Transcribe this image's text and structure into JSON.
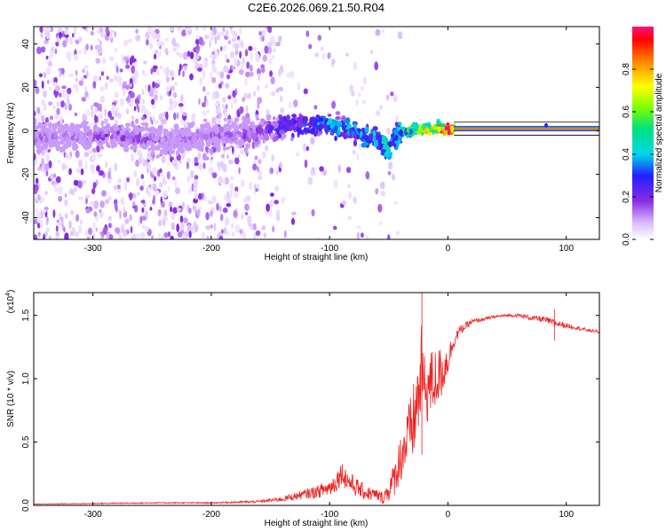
{
  "page_title": "C2E6.2026.069.21.50.R04",
  "chart_data": [
    {
      "type": "heatmap",
      "title": "C2E6.2026.069.21.50.R04",
      "xlabel": "Height of straight line (km)",
      "ylabel": "Frequency (Hz)",
      "xlim": [
        -350,
        128
      ],
      "ylim": [
        -50,
        48
      ],
      "x_ticks": [
        -300,
        -200,
        -100,
        0,
        100
      ],
      "x_tick_labels": [
        "-300",
        "-200",
        "-100",
        "0",
        "100"
      ],
      "y_ticks": [
        -40,
        -20,
        0,
        20,
        40
      ],
      "y_tick_labels": [
        "-40",
        "-20",
        "0",
        "20",
        "40"
      ],
      "colorbar": {
        "label": "Normalized spectral amplitude",
        "range": [
          0,
          1
        ],
        "ticks": [
          0.0,
          0.2,
          0.4,
          0.6,
          0.8
        ],
        "tick_labels": [
          "0.0",
          "0.2",
          "0.4",
          "0.6",
          "0.8"
        ]
      },
      "signal_ridge": {
        "x": [
          -320,
          -280,
          -240,
          -200,
          -160,
          -140,
          -120,
          -100,
          -80,
          -60,
          -50,
          -45,
          -40,
          -30,
          -20,
          -10,
          0,
          10,
          50,
          100,
          128
        ],
        "frequency": [
          -3,
          -2,
          -5,
          -2,
          -1,
          2,
          4,
          3,
          0,
          -5,
          -8,
          -4,
          -1,
          0,
          1,
          1,
          1,
          1,
          1,
          1,
          1
        ],
        "amplitude": [
          0.15,
          0.2,
          0.15,
          0.15,
          0.2,
          0.3,
          0.35,
          0.4,
          0.4,
          0.45,
          0.5,
          0.45,
          0.5,
          0.6,
          0.75,
          0.85,
          0.95,
          1.0,
          1.0,
          1.0,
          1.0
        ]
      }
    },
    {
      "type": "line",
      "xlabel": "Height of straight line (km)",
      "ylabel": "SNR (10 * v/v)",
      "y_multiplier_label": "(x10",
      "y_multiplier_exp": "4",
      "xlim": [
        -350,
        128
      ],
      "ylim": [
        0,
        1.68
      ],
      "x_ticks": [
        -300,
        -200,
        -100,
        0,
        100
      ],
      "x_tick_labels": [
        "-300",
        "-200",
        "-100",
        "0",
        "100"
      ],
      "y_ticks": [
        0,
        0.5,
        1.0,
        1.5
      ],
      "y_tick_labels": [
        "0.0",
        "0.5",
        "1.0",
        "1.5"
      ],
      "series": [
        {
          "name": "SNR",
          "color": "#ee2222",
          "x": [
            -350,
            -300,
            -250,
            -200,
            -160,
            -140,
            -130,
            -120,
            -110,
            -100,
            -95,
            -90,
            -85,
            -80,
            -70,
            -60,
            -55,
            -50,
            -45,
            -40,
            -35,
            -30,
            -25,
            -22,
            -20,
            -15,
            -10,
            -5,
            0,
            5,
            10,
            20,
            30,
            40,
            50,
            60,
            70,
            80,
            90,
            100,
            110,
            120,
            128
          ],
          "y": [
            0.01,
            0.015,
            0.02,
            0.02,
            0.03,
            0.05,
            0.07,
            0.09,
            0.11,
            0.14,
            0.18,
            0.26,
            0.2,
            0.16,
            0.1,
            0.08,
            0.06,
            0.12,
            0.22,
            0.38,
            0.5,
            0.62,
            0.85,
            1.1,
            0.9,
            0.95,
            1.0,
            1.05,
            1.15,
            1.3,
            1.38,
            1.45,
            1.47,
            1.49,
            1.5,
            1.5,
            1.48,
            1.47,
            1.44,
            1.42,
            1.4,
            1.38,
            1.37
          ],
          "noise": [
            0.003,
            0.004,
            0.005,
            0.005,
            0.01,
            0.02,
            0.03,
            0.04,
            0.05,
            0.07,
            0.08,
            0.09,
            0.09,
            0.08,
            0.06,
            0.05,
            0.05,
            0.09,
            0.14,
            0.2,
            0.25,
            0.3,
            0.35,
            0.35,
            0.3,
            0.28,
            0.25,
            0.2,
            0.12,
            0.06,
            0.04,
            0.02,
            0.015,
            0.012,
            0.012,
            0.015,
            0.02,
            0.025,
            0.03,
            0.02,
            0.015,
            0.012,
            0.012
          ]
        }
      ]
    }
  ]
}
